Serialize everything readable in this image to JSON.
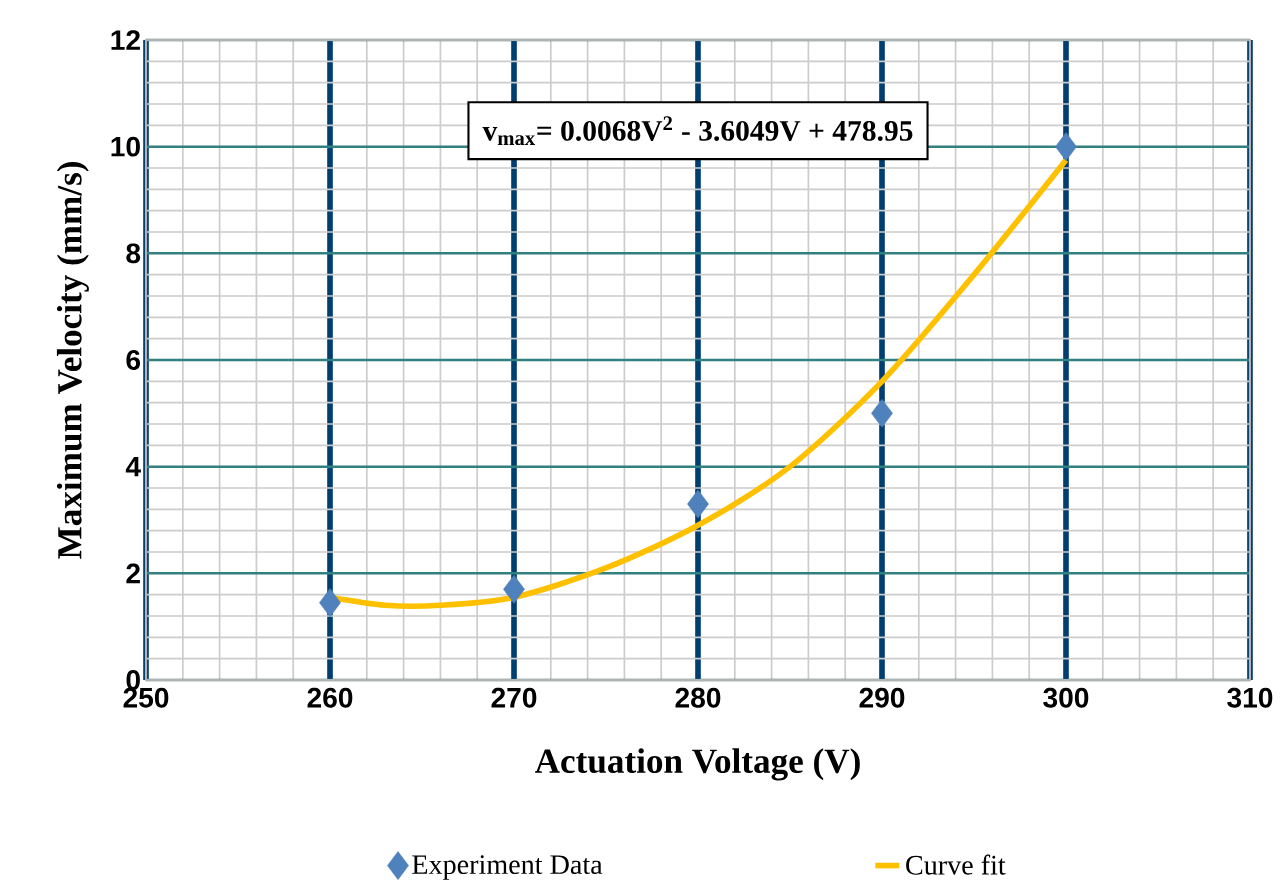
{
  "chart_data": {
    "type": "scatter",
    "xlabel": "Actuation Voltage (V)",
    "ylabel": "Maximum Velocity (mm/s)",
    "annotations": [
      "v$_{max}$= 0.0068V$^{2}$ - 3.6049V + 478.95"
    ],
    "xlim": [
      250,
      310
    ],
    "xticks": [
      250,
      260,
      270,
      280,
      290,
      300,
      310
    ],
    "ylim": [
      0,
      12
    ],
    "yticks": [
      0,
      2,
      4,
      6,
      8,
      10,
      12
    ],
    "grid": true,
    "legend": "bottom",
    "series": [
      {
        "name": "Experiment Data",
        "color": "#4f81bd",
        "marker": "diamond",
        "x": [
          260,
          270,
          280,
          290,
          300
        ],
        "values": [
          1.45,
          1.7,
          3.3,
          5.0,
          10.0
        ]
      },
      {
        "name": "Curve fit",
        "type": "line",
        "color": "#ffc000",
        "marker": "none",
        "x": [
          260,
          263,
          266,
          270,
          275,
          280,
          285,
          290,
          295,
          300
        ],
        "values": [
          1.55,
          1.4,
          1.4,
          1.55,
          2.1,
          2.9,
          4.0,
          5.6,
          7.6,
          9.75
        ]
      }
    ]
  }
}
